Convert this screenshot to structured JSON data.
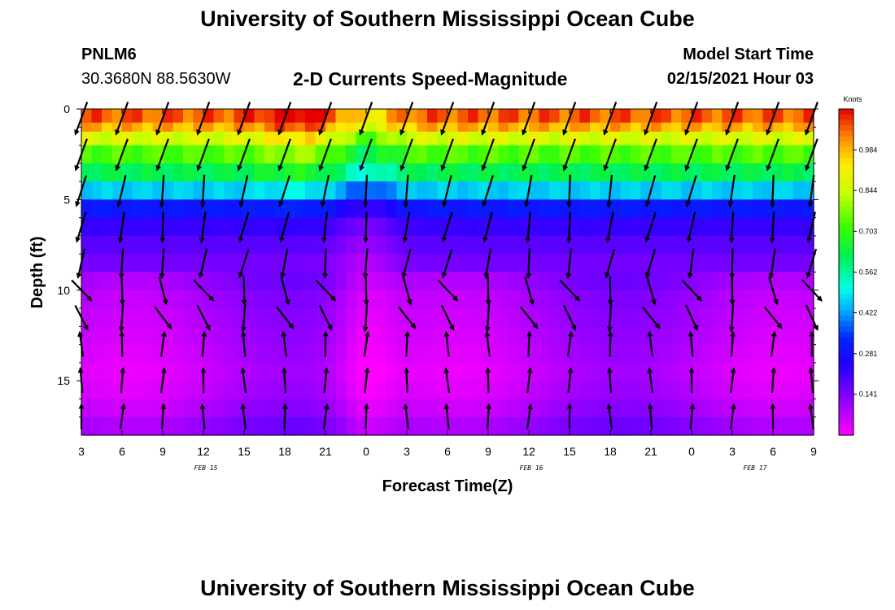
{
  "header": {
    "title": "University of Southern Mississippi Ocean Cube",
    "station_id": "PNLM6",
    "coordinates": "30.3680N 88.5630W",
    "chart_title": "2-D Currents Speed-Magnitude",
    "model_start_label": "Model Start Time",
    "model_start_value": "02/15/2021 Hour 03"
  },
  "footer": {
    "title": "University of Southern Mississippi Ocean Cube"
  },
  "chart_data": {
    "type": "heatmap",
    "title": "2-D Currents Speed-Magnitude",
    "xlabel": "Forecast Time(Z)",
    "ylabel": "Depth (ft)",
    "x_ticks": [
      "3",
      "6",
      "9",
      "12",
      "15",
      "18",
      "21",
      "0",
      "3",
      "6",
      "9",
      "12",
      "15",
      "18",
      "21",
      "0",
      "3",
      "6",
      "9"
    ],
    "x_range_hours": [
      0,
      54
    ],
    "date_labels": [
      {
        "text": "FEB 15",
        "hour": 9
      },
      {
        "text": "FEB 16",
        "hour": 33
      },
      {
        "text": "FEB 17",
        "hour": 49.5
      }
    ],
    "y_ticks": [
      0,
      5,
      10,
      15
    ],
    "ylim_ft": [
      0,
      18
    ],
    "y_inverted": true,
    "colorbar": {
      "unit": "Knots",
      "ticks": [
        "0.984",
        "0.844",
        "0.703",
        "0.562",
        "0.422",
        "0.281",
        "0.141"
      ],
      "range": [
        0,
        1.125
      ]
    },
    "depth_levels_ft": [
      0.5,
      1,
      1.5,
      2.5,
      3.5,
      4.5,
      5.5,
      6.5,
      7.5,
      8.5,
      9.5,
      10.5,
      11.5,
      12.5,
      13.5,
      14.5,
      15.5,
      16.5,
      17.5
    ],
    "surface_speed_profile_knots": [
      1.06,
      0.99,
      0.86,
      0.73,
      0.62,
      0.46,
      0.3,
      0.22,
      0.18,
      0.15,
      0.12,
      0.1,
      0.09,
      0.08,
      0.07,
      0.06,
      0.07,
      0.09,
      0.12
    ],
    "arrow_rows_ft": [
      0.5,
      2.5,
      4.5,
      6.5,
      8.5,
      10,
      11.5,
      13,
      15,
      17
    ],
    "arrow_times_hours": [
      0,
      3,
      6,
      9,
      12,
      15,
      18,
      21,
      24,
      27,
      30,
      33,
      36,
      39,
      42,
      45,
      48,
      51,
      54
    ]
  }
}
